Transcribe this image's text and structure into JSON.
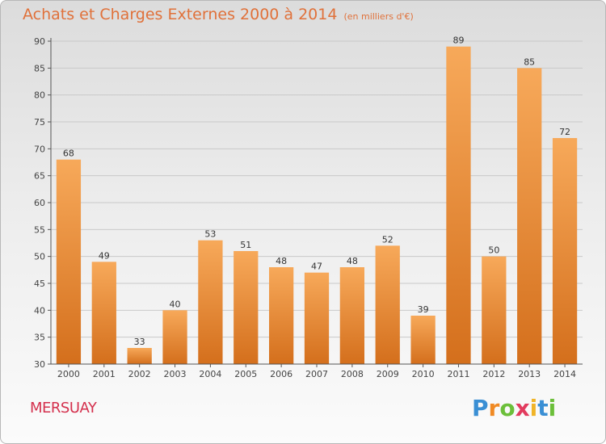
{
  "header": {
    "title": "Achats et Charges Externes 2000 à 2014",
    "subtitle": "(en milliers d'€)"
  },
  "footer": {
    "commune": "MERSUAY",
    "logo_letters": [
      "P",
      "r",
      "o",
      "x",
      "i",
      "t",
      "i"
    ],
    "logo_colors": [
      "#3a8fd4",
      "#f08a24",
      "#6cbf3a",
      "#e23b5e",
      "#f0b428",
      "#3a8fd4",
      "#6cbf3a"
    ]
  },
  "colors": {
    "bar_light": "#f7a95a",
    "bar_dark": "#d46f1c",
    "axis": "#555555",
    "grid": "#c9c9c9"
  },
  "chart_data": {
    "type": "bar",
    "categories": [
      "2000",
      "2001",
      "2002",
      "2003",
      "2004",
      "2005",
      "2006",
      "2007",
      "2008",
      "2009",
      "2010",
      "2011",
      "2012",
      "2013",
      "2014"
    ],
    "values": [
      68,
      49,
      33,
      40,
      53,
      51,
      48,
      47,
      48,
      52,
      39,
      89,
      50,
      85,
      72
    ],
    "ylim": [
      30,
      90
    ],
    "yticks": [
      30,
      35,
      40,
      45,
      50,
      55,
      60,
      65,
      70,
      75,
      80,
      85,
      90
    ],
    "grid": "horizontal",
    "data_labels": true
  }
}
